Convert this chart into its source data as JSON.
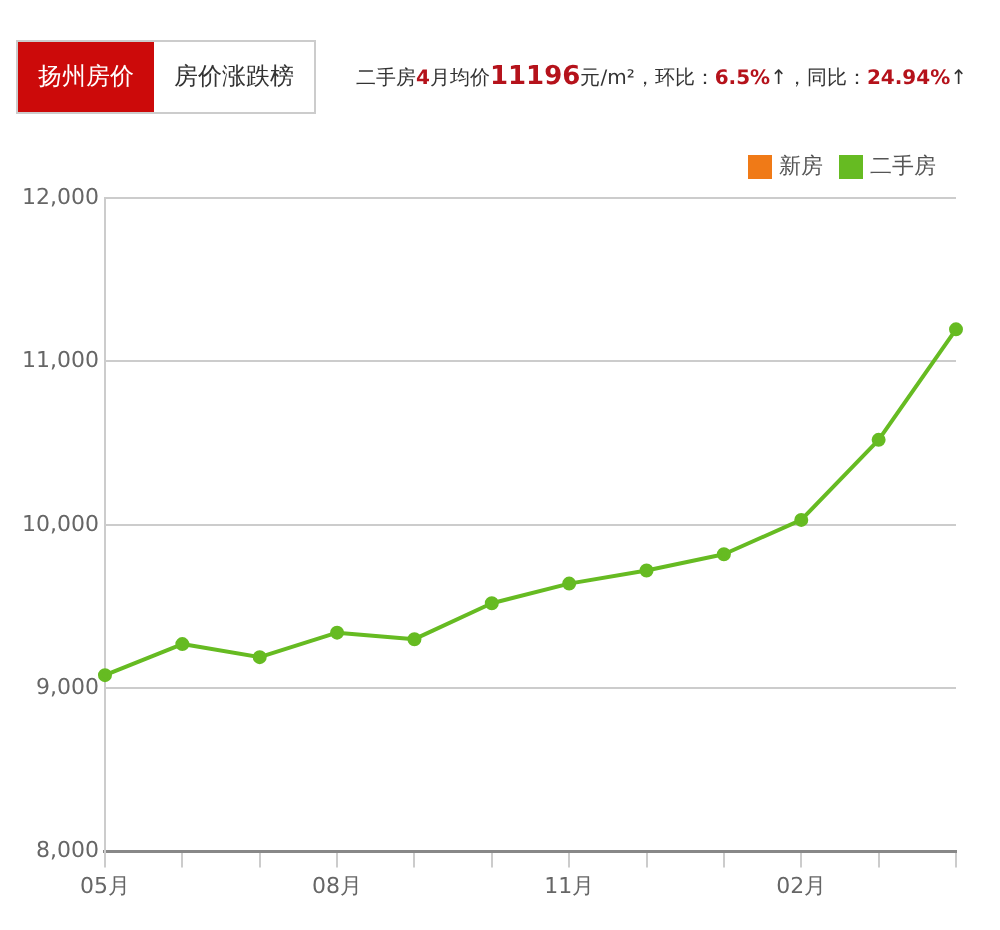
{
  "chart_data": {
    "type": "line",
    "subtitle": "二手房4月均价11196元/m²，环比：6.5%↑，同比：24.94%↑",
    "annotations": [
      "扬州房价",
      "房价涨跌榜"
    ],
    "categories": [
      "05月",
      null,
      null,
      "08月",
      null,
      null,
      "11月",
      null,
      null,
      "02月",
      null,
      null
    ],
    "series": [
      {
        "name": "新房",
        "color": "#f07a17",
        "values": [
          null,
          null,
          null,
          null,
          null,
          null,
          null,
          null,
          null,
          null,
          null,
          null
        ]
      },
      {
        "name": "二手房",
        "color": "#66bb22",
        "values": [
          9080,
          9270,
          9190,
          9340,
          9300,
          9520,
          9640,
          9720,
          9820,
          10030,
          10520,
          11196
        ]
      }
    ],
    "ylim": [
      8000,
      12000
    ],
    "yticks": [
      {
        "value": 8000,
        "label": "8,000"
      },
      {
        "value": 9000,
        "label": "9,000"
      },
      {
        "value": 10000,
        "label": "10,000"
      },
      {
        "value": 11000,
        "label": "11,000"
      },
      {
        "value": 12000,
        "label": "12,000"
      }
    ],
    "grid": "y",
    "legend": "top right",
    "marker": "circle",
    "line_style": "solid"
  }
}
